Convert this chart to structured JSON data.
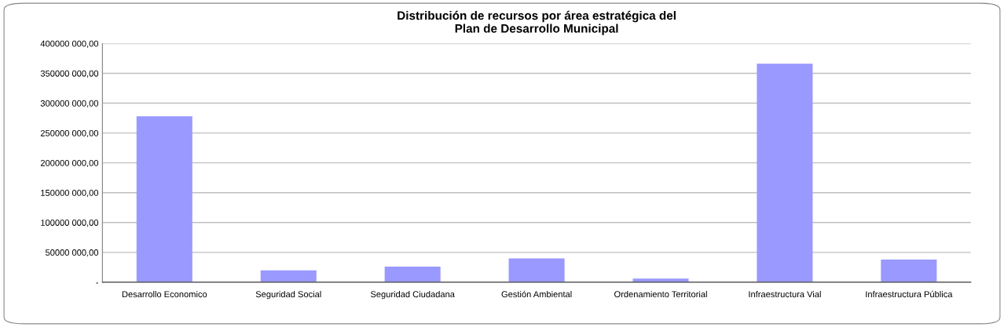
{
  "chart_data": {
    "type": "bar",
    "title": "Distribución de recursos por área estratégica del\nPlan de Desarrollo Municipal",
    "categories": [
      "Desarrollo Economico",
      "Seguridad Social",
      "Seguridad Ciudadana",
      "Gestión Ambiental",
      "Ordenamiento Territorial",
      "Infraestructura Vial",
      "Infraestructura Pública"
    ],
    "values": [
      278000000,
      20000000,
      26000000,
      40000000,
      6000000,
      366000000,
      38000000
    ],
    "color": "#9999ff",
    "ylim": [
      0,
      400000000
    ],
    "yticks": [
      {
        "value": 0,
        "label": "-"
      },
      {
        "value": 50000000,
        "label": "50000 000,00"
      },
      {
        "value": 100000000,
        "label": "100000 000,00"
      },
      {
        "value": 150000000,
        "label": "150000 000,00"
      },
      {
        "value": 200000000,
        "label": "200000 000,00"
      },
      {
        "value": 250000000,
        "label": "250000 000,00"
      },
      {
        "value": 300000000,
        "label": "300000 000,00"
      },
      {
        "value": 350000000,
        "label": "350000 000,00"
      },
      {
        "value": 400000000,
        "label": "400000 000,00"
      }
    ],
    "grid": "y",
    "legend": false
  }
}
